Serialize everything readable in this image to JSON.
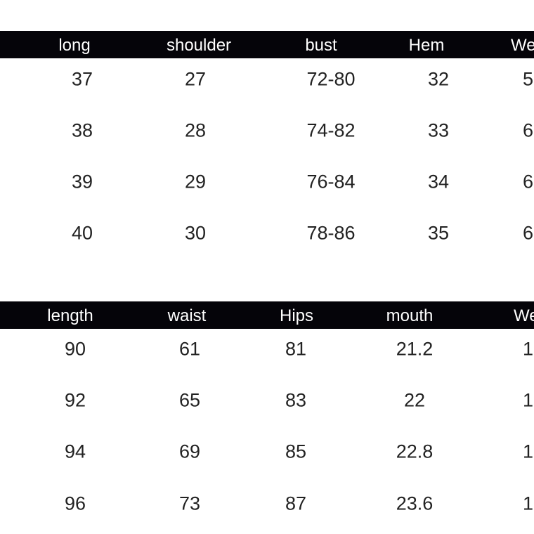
{
  "table1": {
    "headers": [
      "long",
      "shoulder",
      "bust",
      "Hem",
      "We"
    ],
    "rows": [
      [
        "37",
        "27",
        "72-80",
        "32",
        "5"
      ],
      [
        "38",
        "28",
        "74-82",
        "33",
        "6"
      ],
      [
        "39",
        "29",
        "76-84",
        "34",
        "6"
      ],
      [
        "40",
        "30",
        "78-86",
        "35",
        "6"
      ]
    ]
  },
  "table2": {
    "headers": [
      "length",
      "waist",
      "Hips",
      "mouth",
      "We"
    ],
    "rows": [
      [
        "90",
        "61",
        "81",
        "21.2",
        "1"
      ],
      [
        "92",
        "65",
        "83",
        "22",
        "1"
      ],
      [
        "94",
        "69",
        "85",
        "22.8",
        "1"
      ],
      [
        "96",
        "73",
        "87",
        "23.6",
        "1"
      ]
    ]
  },
  "colors": {
    "header_bg": "#050409",
    "header_text": "#ffffff",
    "value_text": "#222222"
  }
}
